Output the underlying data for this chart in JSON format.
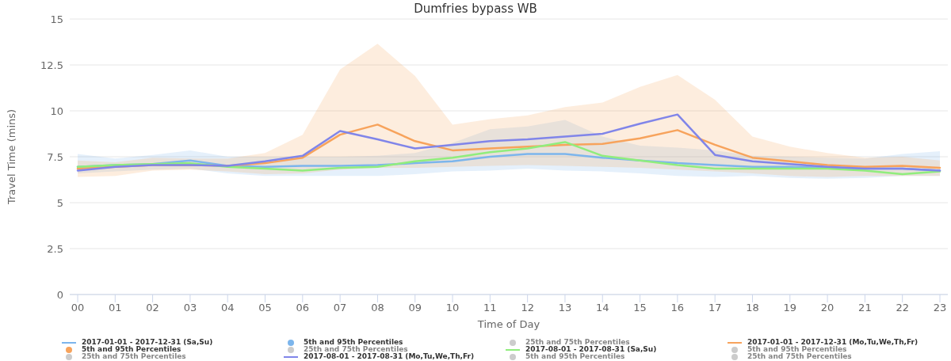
{
  "chart_data": {
    "type": "line",
    "title": "Dumfries bypass WB",
    "xlabel": "Time of Day",
    "ylabel": "Travel Time (mins)",
    "categories": [
      "00",
      "01",
      "02",
      "03",
      "04",
      "05",
      "06",
      "07",
      "08",
      "09",
      "10",
      "11",
      "12",
      "13",
      "14",
      "15",
      "16",
      "17",
      "18",
      "19",
      "20",
      "21",
      "22",
      "23"
    ],
    "ylim": [
      0,
      15
    ],
    "yticks": [
      0,
      2.5,
      5,
      7.5,
      10,
      12.5,
      15
    ],
    "grid": "y",
    "legend": "bottom",
    "series": [
      {
        "name": "2017-01-01 - 2017-12-31 (Sa,Su)",
        "color": "#7cb5ec",
        "values": [
          6.95,
          7.05,
          7.1,
          7.3,
          7.0,
          6.95,
          7.0,
          7.0,
          7.05,
          7.15,
          7.25,
          7.5,
          7.65,
          7.65,
          7.45,
          7.3,
          7.15,
          7.05,
          6.95,
          6.95,
          6.9,
          6.85,
          6.85,
          6.75
        ]
      },
      {
        "name": "5th and 95th Percentiles",
        "color": "#7cb5ec",
        "values": [
          null,
          null,
          null,
          null,
          null,
          null,
          null,
          null,
          null,
          null,
          null,
          null,
          null,
          null,
          null,
          null,
          null,
          null,
          null,
          null,
          null,
          null,
          null,
          null
        ],
        "lower": [
          6.6,
          6.7,
          6.8,
          6.85,
          6.6,
          6.45,
          6.45,
          6.45,
          6.45,
          6.55,
          6.7,
          6.75,
          6.85,
          6.75,
          6.7,
          6.6,
          6.45,
          6.4,
          6.45,
          6.35,
          6.3,
          6.35,
          6.45,
          6.45
        ],
        "upper": [
          7.65,
          7.4,
          7.6,
          7.85,
          7.5,
          7.5,
          7.5,
          7.5,
          7.55,
          7.7,
          8.25,
          9.0,
          9.15,
          9.5,
          8.6,
          8.1,
          8.0,
          7.85,
          7.55,
          7.5,
          7.45,
          7.4,
          7.65,
          7.8
        ]
      },
      {
        "name": "25th and 75th Percentiles",
        "color": "#cccccc",
        "values": [
          null,
          null,
          null,
          null,
          null,
          null,
          null,
          null,
          null,
          null,
          null,
          null,
          null,
          null,
          null,
          null,
          null,
          null,
          null,
          null,
          null,
          null,
          null,
          null
        ]
      },
      {
        "name": "2017-01-01 - 2017-12-31 (Mo,Tu,We,Th,Fr)",
        "color": "#f7a35c",
        "values": [
          6.85,
          6.95,
          7.05,
          7.05,
          7.0,
          7.15,
          7.45,
          8.7,
          9.25,
          8.35,
          7.85,
          7.95,
          8.05,
          8.15,
          8.2,
          8.5,
          8.95,
          8.15,
          7.45,
          7.25,
          7.05,
          6.95,
          7.0,
          6.9
        ]
      },
      {
        "name": "5th and 95th Percentiles",
        "color": "#f7a35c",
        "values": [
          null,
          null,
          null,
          null,
          null,
          null,
          null,
          null,
          null,
          null,
          null,
          null,
          null,
          null,
          null,
          null,
          null,
          null,
          null,
          null,
          null,
          null,
          null,
          null
        ],
        "lower": [
          6.4,
          6.45,
          6.75,
          6.8,
          6.7,
          6.55,
          6.6,
          6.8,
          6.9,
          6.9,
          6.95,
          7.0,
          7.05,
          7.0,
          6.95,
          6.9,
          6.8,
          6.7,
          6.6,
          6.45,
          6.4,
          6.45,
          6.45,
          6.45
        ],
        "upper": [
          7.3,
          7.2,
          7.45,
          7.4,
          7.4,
          7.7,
          8.7,
          12.25,
          13.65,
          11.9,
          9.25,
          9.55,
          9.75,
          10.2,
          10.45,
          11.3,
          11.95,
          10.6,
          8.6,
          8.05,
          7.7,
          7.45,
          7.5,
          7.3
        ]
      },
      {
        "name": "25th and 75th Percentiles",
        "color": "#cccccc",
        "values": [
          null,
          null,
          null,
          null,
          null,
          null,
          null,
          null,
          null,
          null,
          null,
          null,
          null,
          null,
          null,
          null,
          null,
          null,
          null,
          null,
          null,
          null,
          null,
          null
        ]
      },
      {
        "name": "2017-08-01 - 2017-08-31 (Sa,Su)",
        "color": "#90ed7d",
        "values": [
          6.95,
          7.05,
          7.1,
          7.15,
          6.95,
          6.85,
          6.75,
          6.9,
          6.95,
          7.25,
          7.45,
          7.75,
          7.95,
          8.3,
          7.55,
          7.3,
          7.05,
          6.85,
          6.85,
          6.85,
          6.85,
          6.75,
          6.55,
          6.7
        ]
      },
      {
        "name": "5th and 95th Percentiles",
        "color": "#cccccc",
        "values": [
          null,
          null,
          null,
          null,
          null,
          null,
          null,
          null,
          null,
          null,
          null,
          null,
          null,
          null,
          null,
          null,
          null,
          null,
          null,
          null,
          null,
          null,
          null,
          null
        ]
      },
      {
        "name": "25th and 75th Percentiles",
        "color": "#cccccc",
        "values": [
          null,
          null,
          null,
          null,
          null,
          null,
          null,
          null,
          null,
          null,
          null,
          null,
          null,
          null,
          null,
          null,
          null,
          null,
          null,
          null,
          null,
          null,
          null,
          null
        ]
      },
      {
        "name": "2017-08-01 - 2017-08-31 (Mo,Tu,We,Th,Fr)",
        "color": "#8085e9",
        "values": [
          6.75,
          6.95,
          7.05,
          7.05,
          7.0,
          7.25,
          7.55,
          8.9,
          8.45,
          7.95,
          8.15,
          8.35,
          8.45,
          8.6,
          8.75,
          9.3,
          9.8,
          7.6,
          7.25,
          7.1,
          6.95,
          6.85,
          6.85,
          6.75
        ]
      },
      {
        "name": "5th and 95th Percentiles",
        "color": "#cccccc",
        "values": [
          null,
          null,
          null,
          null,
          null,
          null,
          null,
          null,
          null,
          null,
          null,
          null,
          null,
          null,
          null,
          null,
          null,
          null,
          null,
          null,
          null,
          null,
          null,
          null
        ]
      },
      {
        "name": "25th and 75th Percentiles",
        "color": "#cccccc",
        "values": [
          null,
          null,
          null,
          null,
          null,
          null,
          null,
          null,
          null,
          null,
          null,
          null,
          null,
          null,
          null,
          null,
          null,
          null,
          null,
          null,
          null,
          null,
          null,
          null
        ]
      }
    ]
  }
}
